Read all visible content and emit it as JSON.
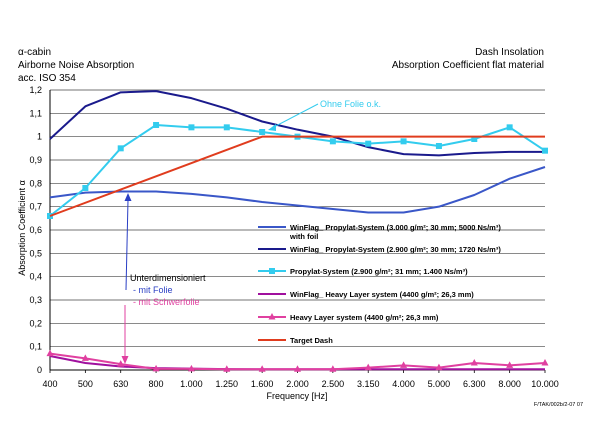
{
  "header": {
    "left": [
      "α-cabin",
      "Airborne Noise Absorption",
      "acc. ISO 354"
    ],
    "right": [
      "Dash Insolation",
      "Absorption Coefficient flat material"
    ]
  },
  "reference": "F/TAK/002b/2-07 07",
  "annotations": {
    "ohne_folie": "Ohne Folie o.k.",
    "unter": "Unterdimensioniert",
    "mit_folie": "- mit Folie",
    "mit_schwerfolie": "- mit Schwerfolie"
  },
  "colors": {
    "navy": "#1a1a8c",
    "blue": "#3a57c8",
    "cyan": "#33ccee",
    "magenta_dark": "#a0109e",
    "pink": "#e040a0",
    "red": "#e03c1e",
    "annot_blue": "#2a3fc4",
    "annot_pink": "#e040a0"
  },
  "chart_data": {
    "type": "line",
    "title": "",
    "xlabel": "Frequency [Hz]",
    "ylabel": "Absorption Coefficient α",
    "categories": [
      "400",
      "500",
      "630",
      "800",
      "1.000",
      "1.250",
      "1.600",
      "2.000",
      "2.500",
      "3.150",
      "4.000",
      "5.000",
      "6.300",
      "8.000",
      "10.000"
    ],
    "ylim": [
      0,
      1.2
    ],
    "yticks": [
      "0",
      "0,1",
      "0,2",
      "0,3",
      "0,4",
      "0,5",
      "0,6",
      "0,7",
      "0,8",
      "0,9",
      "1",
      "1,1",
      "1,2"
    ],
    "grid": "horizontal",
    "legend_position": "lower-right",
    "series": [
      {
        "name": "WinFlag_ Propylat-System (3.000 g/m²; 30 mm; 5000 Ns/m³) with foil",
        "color_key": "blue",
        "marker": "none",
        "values": [
          0.74,
          0.76,
          0.765,
          0.765,
          0.755,
          0.74,
          0.72,
          0.705,
          0.69,
          0.675,
          0.675,
          0.7,
          0.75,
          0.82,
          0.87
        ]
      },
      {
        "name": "WinFlag_ Propylat-System (2.900 g/m²; 30 mm; 1720 Ns/m³)",
        "color_key": "navy",
        "marker": "none",
        "values": [
          0.99,
          1.13,
          1.19,
          1.195,
          1.165,
          1.12,
          1.065,
          1.03,
          1.0,
          0.955,
          0.925,
          0.92,
          0.93,
          0.935,
          0.935
        ]
      },
      {
        "name": "Propylat-System (2.900 g/m²; 31 mm; 1.400 Ns/m³)",
        "color_key": "cyan",
        "marker": "square",
        "values": [
          0.66,
          0.78,
          0.95,
          1.05,
          1.04,
          1.04,
          1.02,
          1.0,
          0.98,
          0.97,
          0.98,
          0.96,
          0.99,
          1.04,
          0.94
        ]
      },
      {
        "name": "WinFlag_ Heavy Layer system (4400 g/m²; 26,3 mm)",
        "color_key": "magenta_dark",
        "marker": "none",
        "values": [
          0.06,
          0.03,
          0.015,
          0.008,
          0.006,
          0.004,
          0.003,
          0.003,
          0.003,
          0.003,
          0.003,
          0.003,
          0.003,
          0.003,
          0.003
        ]
      },
      {
        "name": "Heavy Layer system (4400 g/m²; 26,3 mm)",
        "color_key": "pink",
        "marker": "triangle",
        "values": [
          0.07,
          0.05,
          0.025,
          0.005,
          0.005,
          0.003,
          0.003,
          0.003,
          0.003,
          0.01,
          0.02,
          0.01,
          0.03,
          0.02,
          0.03
        ]
      },
      {
        "name": "Target Dash",
        "color_key": "red",
        "marker": "none",
        "values": [
          0.66,
          null,
          null,
          null,
          null,
          null,
          1.0,
          1.0,
          1.0,
          1.0,
          1.0,
          1.0,
          1.0,
          1.0,
          1.0
        ]
      }
    ]
  }
}
